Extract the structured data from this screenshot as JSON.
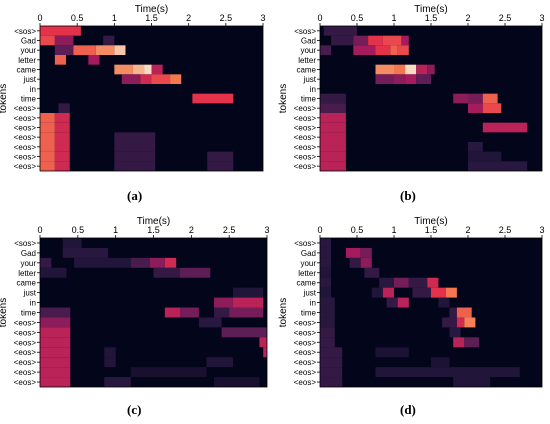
{
  "chart_data": [
    {
      "id": "a",
      "type": "heatmap",
      "xlabel": "Time(s)",
      "ylabel": "tokens",
      "xlim": [
        0,
        3
      ],
      "xticks": [
        "0",
        "0.5",
        "1",
        "1.5",
        "2",
        "2.5",
        "3"
      ],
      "yticklabels": [
        "<sos>",
        "Gad",
        "your",
        "letter",
        "came",
        "just",
        "in",
        "time",
        "<eos>",
        "<eos>",
        "<eos>",
        "<eos>",
        "<eos>",
        "<eos>",
        "<eos>"
      ],
      "caption": "(a)",
      "cells": [
        {
          "row": 0,
          "x0": 0.0,
          "x1": 0.55,
          "v": 0.55
        },
        {
          "row": 1,
          "x0": 0.0,
          "x1": 0.2,
          "v": 0.6
        },
        {
          "row": 1,
          "x0": 0.2,
          "x1": 0.45,
          "v": 0.35
        },
        {
          "row": 1,
          "x0": 0.85,
          "x1": 1.0,
          "v": 0.15
        },
        {
          "row": 2,
          "x0": 0.2,
          "x1": 0.45,
          "v": 0.25
        },
        {
          "row": 2,
          "x0": 0.45,
          "x1": 0.75,
          "v": 0.65
        },
        {
          "row": 2,
          "x0": 0.75,
          "x1": 1.0,
          "v": 0.75
        },
        {
          "row": 2,
          "x0": 1.0,
          "x1": 1.15,
          "v": 0.9
        },
        {
          "row": 3,
          "x0": 0.2,
          "x1": 0.35,
          "v": 0.65
        },
        {
          "row": 3,
          "x0": 0.65,
          "x1": 0.8,
          "v": 0.4
        },
        {
          "row": 4,
          "x0": 1.0,
          "x1": 1.25,
          "v": 0.75
        },
        {
          "row": 4,
          "x0": 1.25,
          "x1": 1.4,
          "v": 0.85
        },
        {
          "row": 4,
          "x0": 1.4,
          "x1": 1.5,
          "v": 0.95
        },
        {
          "row": 4,
          "x0": 1.5,
          "x1": 1.65,
          "v": 0.45
        },
        {
          "row": 5,
          "x0": 1.1,
          "x1": 1.35,
          "v": 0.35
        },
        {
          "row": 5,
          "x0": 1.35,
          "x1": 1.5,
          "v": 0.5
        },
        {
          "row": 5,
          "x0": 1.5,
          "x1": 1.75,
          "v": 0.6
        },
        {
          "row": 5,
          "x0": 1.75,
          "x1": 1.9,
          "v": 0.7
        },
        {
          "row": 7,
          "x0": 2.05,
          "x1": 2.6,
          "v": 0.55
        },
        {
          "row": 8,
          "x0": 0.25,
          "x1": 0.4,
          "v": 0.15
        },
        {
          "row": 9,
          "x0": 0.0,
          "x1": 0.2,
          "v": 0.65
        },
        {
          "row": 9,
          "x0": 0.2,
          "x1": 0.4,
          "v": 0.5
        },
        {
          "row": 10,
          "x0": 0.0,
          "x1": 0.2,
          "v": 0.65
        },
        {
          "row": 10,
          "x0": 0.2,
          "x1": 0.4,
          "v": 0.5
        },
        {
          "row": 11,
          "x0": 0.0,
          "x1": 0.2,
          "v": 0.65
        },
        {
          "row": 11,
          "x0": 0.2,
          "x1": 0.4,
          "v": 0.5
        },
        {
          "row": 11,
          "x0": 1.0,
          "x1": 1.55,
          "v": 0.15
        },
        {
          "row": 12,
          "x0": 0.0,
          "x1": 0.2,
          "v": 0.65
        },
        {
          "row": 12,
          "x0": 0.2,
          "x1": 0.4,
          "v": 0.5
        },
        {
          "row": 12,
          "x0": 1.0,
          "x1": 1.55,
          "v": 0.15
        },
        {
          "row": 13,
          "x0": 0.0,
          "x1": 0.2,
          "v": 0.65
        },
        {
          "row": 13,
          "x0": 0.2,
          "x1": 0.4,
          "v": 0.5
        },
        {
          "row": 13,
          "x0": 1.0,
          "x1": 1.55,
          "v": 0.15
        },
        {
          "row": 13,
          "x0": 2.25,
          "x1": 2.6,
          "v": 0.15
        },
        {
          "row": 14,
          "x0": 0.0,
          "x1": 0.2,
          "v": 0.65
        },
        {
          "row": 14,
          "x0": 0.2,
          "x1": 0.4,
          "v": 0.5
        },
        {
          "row": 14,
          "x0": 1.0,
          "x1": 1.55,
          "v": 0.15
        },
        {
          "row": 14,
          "x0": 2.25,
          "x1": 2.6,
          "v": 0.15
        }
      ]
    },
    {
      "id": "b",
      "type": "heatmap",
      "xlabel": "Time(s)",
      "ylabel": "tokens",
      "xlim": [
        0,
        3
      ],
      "xticks": [
        "0",
        "0.5",
        "1",
        "1.5",
        "2",
        "2.5",
        "3"
      ],
      "yticklabels": [
        "<sos>",
        "Gad",
        "your",
        "letter",
        "came",
        "just",
        "in",
        "time",
        "<eos>",
        "<eos>",
        "<eos>",
        "<eos>",
        "<eos>",
        "<eos>",
        "<eos>"
      ],
      "caption": "(b)",
      "cells": [
        {
          "row": 0,
          "x0": 0.05,
          "x1": 0.5,
          "v": 0.15
        },
        {
          "row": 1,
          "x0": 0.15,
          "x1": 0.45,
          "v": 0.15
        },
        {
          "row": 1,
          "x0": 0.45,
          "x1": 0.65,
          "v": 0.3
        },
        {
          "row": 1,
          "x0": 0.65,
          "x1": 0.85,
          "v": 0.55
        },
        {
          "row": 1,
          "x0": 0.85,
          "x1": 1.1,
          "v": 0.6
        },
        {
          "row": 1,
          "x0": 1.1,
          "x1": 1.2,
          "v": 0.4
        },
        {
          "row": 2,
          "x0": 0.0,
          "x1": 0.15,
          "v": 0.2
        },
        {
          "row": 2,
          "x0": 0.45,
          "x1": 0.75,
          "v": 0.4
        },
        {
          "row": 2,
          "x0": 0.75,
          "x1": 0.95,
          "v": 0.55
        },
        {
          "row": 2,
          "x0": 0.95,
          "x1": 1.05,
          "v": 0.65
        },
        {
          "row": 2,
          "x0": 1.05,
          "x1": 1.2,
          "v": 0.6
        },
        {
          "row": 4,
          "x0": 0.75,
          "x1": 1.0,
          "v": 0.75
        },
        {
          "row": 4,
          "x0": 1.0,
          "x1": 1.15,
          "v": 0.7
        },
        {
          "row": 4,
          "x0": 1.15,
          "x1": 1.3,
          "v": 0.95
        },
        {
          "row": 4,
          "x0": 1.3,
          "x1": 1.45,
          "v": 0.45
        },
        {
          "row": 4,
          "x0": 1.45,
          "x1": 1.55,
          "v": 0.35
        },
        {
          "row": 5,
          "x0": 0.75,
          "x1": 1.0,
          "v": 0.3
        },
        {
          "row": 5,
          "x0": 1.0,
          "x1": 1.15,
          "v": 0.35
        },
        {
          "row": 5,
          "x0": 1.15,
          "x1": 1.3,
          "v": 0.4
        },
        {
          "row": 5,
          "x0": 1.3,
          "x1": 1.5,
          "v": 0.25
        },
        {
          "row": 7,
          "x0": 0.0,
          "x1": 0.35,
          "v": 0.15
        },
        {
          "row": 7,
          "x0": 1.8,
          "x1": 2.0,
          "v": 0.35
        },
        {
          "row": 7,
          "x0": 2.0,
          "x1": 2.2,
          "v": 0.3
        },
        {
          "row": 7,
          "x0": 2.2,
          "x1": 2.4,
          "v": 0.65
        },
        {
          "row": 8,
          "x0": 0.0,
          "x1": 0.35,
          "v": 0.2
        },
        {
          "row": 8,
          "x0": 2.0,
          "x1": 2.2,
          "v": 0.4
        },
        {
          "row": 8,
          "x0": 2.2,
          "x1": 2.45,
          "v": 0.6
        },
        {
          "row": 9,
          "x0": 0.0,
          "x1": 0.35,
          "v": 0.45
        },
        {
          "row": 10,
          "x0": 0.0,
          "x1": 0.35,
          "v": 0.45
        },
        {
          "row": 10,
          "x0": 2.2,
          "x1": 2.8,
          "v": 0.45
        },
        {
          "row": 11,
          "x0": 0.0,
          "x1": 0.35,
          "v": 0.45
        },
        {
          "row": 12,
          "x0": 0.0,
          "x1": 0.35,
          "v": 0.45
        },
        {
          "row": 12,
          "x0": 2.0,
          "x1": 2.2,
          "v": 0.12
        },
        {
          "row": 13,
          "x0": 0.0,
          "x1": 0.35,
          "v": 0.45
        },
        {
          "row": 13,
          "x0": 2.0,
          "x1": 2.45,
          "v": 0.1
        },
        {
          "row": 14,
          "x0": 0.0,
          "x1": 0.35,
          "v": 0.45
        },
        {
          "row": 14,
          "x0": 2.0,
          "x1": 2.8,
          "v": 0.12
        }
      ]
    },
    {
      "id": "c",
      "type": "heatmap",
      "xlabel": "Time(s)",
      "ylabel": "tokens",
      "xlim": [
        0,
        3
      ],
      "xticks": [
        "0",
        "0.5",
        "1",
        "1.5",
        "2",
        "2.5",
        "3"
      ],
      "yticklabels": [
        "<sos>",
        "Gad",
        "your",
        "letter",
        "came",
        "just",
        "in",
        "time",
        "<eos>",
        "<eos>",
        "<eos>",
        "<eos>",
        "<eos>",
        "<eos>",
        "<eos>"
      ],
      "caption": "(c)",
      "cells": [
        {
          "row": 0,
          "x0": 0.3,
          "x1": 0.55,
          "v": 0.1
        },
        {
          "row": 1,
          "x0": 0.3,
          "x1": 0.9,
          "v": 0.12
        },
        {
          "row": 2,
          "x0": 0.0,
          "x1": 0.15,
          "v": 0.15
        },
        {
          "row": 2,
          "x0": 0.45,
          "x1": 1.2,
          "v": 0.1
        },
        {
          "row": 2,
          "x0": 1.2,
          "x1": 1.45,
          "v": 0.2
        },
        {
          "row": 2,
          "x0": 1.45,
          "x1": 1.65,
          "v": 0.35
        },
        {
          "row": 2,
          "x0": 1.65,
          "x1": 1.8,
          "v": 0.5
        },
        {
          "row": 3,
          "x0": 0.0,
          "x1": 0.35,
          "v": 0.1
        },
        {
          "row": 3,
          "x0": 1.5,
          "x1": 1.85,
          "v": 0.15
        },
        {
          "row": 3,
          "x0": 1.85,
          "x1": 2.25,
          "v": 0.25
        },
        {
          "row": 5,
          "x0": 2.55,
          "x1": 2.95,
          "v": 0.1
        },
        {
          "row": 6,
          "x0": 2.3,
          "x1": 2.55,
          "v": 0.35
        },
        {
          "row": 6,
          "x0": 2.55,
          "x1": 2.95,
          "v": 0.45
        },
        {
          "row": 7,
          "x0": 0.0,
          "x1": 0.4,
          "v": 0.2
        },
        {
          "row": 7,
          "x0": 1.65,
          "x1": 1.85,
          "v": 0.45
        },
        {
          "row": 7,
          "x0": 1.85,
          "x1": 2.1,
          "v": 0.3
        },
        {
          "row": 7,
          "x0": 2.3,
          "x1": 2.5,
          "v": 0.15
        },
        {
          "row": 7,
          "x0": 2.5,
          "x1": 2.95,
          "v": 0.3
        },
        {
          "row": 8,
          "x0": 0.0,
          "x1": 0.4,
          "v": 0.35
        },
        {
          "row": 8,
          "x0": 2.1,
          "x1": 2.4,
          "v": 0.12
        },
        {
          "row": 9,
          "x0": 0.0,
          "x1": 0.4,
          "v": 0.45
        },
        {
          "row": 9,
          "x0": 2.4,
          "x1": 3.0,
          "v": 0.25
        },
        {
          "row": 10,
          "x0": 0.0,
          "x1": 0.4,
          "v": 0.45
        },
        {
          "row": 10,
          "x0": 2.9,
          "x1": 3.0,
          "v": 0.45
        },
        {
          "row": 11,
          "x0": 0.0,
          "x1": 0.4,
          "v": 0.45
        },
        {
          "row": 11,
          "x0": 0.85,
          "x1": 1.0,
          "v": 0.1
        },
        {
          "row": 11,
          "x0": 2.95,
          "x1": 3.0,
          "v": 0.45
        },
        {
          "row": 12,
          "x0": 0.0,
          "x1": 0.4,
          "v": 0.45
        },
        {
          "row": 12,
          "x0": 0.85,
          "x1": 1.0,
          "v": 0.1
        },
        {
          "row": 12,
          "x0": 2.2,
          "x1": 2.55,
          "v": 0.1
        },
        {
          "row": 13,
          "x0": 0.0,
          "x1": 0.4,
          "v": 0.45
        },
        {
          "row": 13,
          "x0": 1.2,
          "x1": 2.2,
          "v": 0.07
        },
        {
          "row": 14,
          "x0": 0.0,
          "x1": 0.4,
          "v": 0.45
        },
        {
          "row": 14,
          "x0": 0.85,
          "x1": 1.2,
          "v": 0.12
        },
        {
          "row": 14,
          "x0": 2.3,
          "x1": 2.9,
          "v": 0.07
        }
      ]
    },
    {
      "id": "d",
      "type": "heatmap",
      "xlabel": "Time(s)",
      "ylabel": "tokens",
      "xlim": [
        0,
        3
      ],
      "xticks": [
        "0",
        "0.5",
        "1",
        "1.5",
        "2",
        "2.5",
        "3"
      ],
      "yticklabels": [
        "<sos>",
        "Gad",
        "your",
        "letter",
        "came",
        "just",
        "in",
        "time",
        "<eos>",
        "<eos>",
        "<eos>",
        "<eos>",
        "<eos>",
        "<eos>",
        "<eos>"
      ],
      "caption": "(d)",
      "cells": [
        {
          "row": 0,
          "x0": 0.0,
          "x1": 0.15,
          "v": 0.12
        },
        {
          "row": 1,
          "x0": 0.0,
          "x1": 0.15,
          "v": 0.12
        },
        {
          "row": 1,
          "x0": 0.35,
          "x1": 0.55,
          "v": 0.4
        },
        {
          "row": 1,
          "x0": 0.55,
          "x1": 0.7,
          "v": 0.3
        },
        {
          "row": 2,
          "x0": 0.0,
          "x1": 0.15,
          "v": 0.12
        },
        {
          "row": 2,
          "x0": 0.4,
          "x1": 0.55,
          "v": 0.15
        },
        {
          "row": 2,
          "x0": 0.55,
          "x1": 0.7,
          "v": 0.35
        },
        {
          "row": 3,
          "x0": 0.0,
          "x1": 0.15,
          "v": 0.1
        },
        {
          "row": 3,
          "x0": 0.6,
          "x1": 0.8,
          "v": 0.15
        },
        {
          "row": 4,
          "x0": 0.0,
          "x1": 0.15,
          "v": 0.12
        },
        {
          "row": 4,
          "x0": 0.8,
          "x1": 1.0,
          "v": 0.12
        },
        {
          "row": 4,
          "x0": 1.0,
          "x1": 1.2,
          "v": 0.3
        },
        {
          "row": 4,
          "x0": 1.2,
          "x1": 1.45,
          "v": 0.15
        },
        {
          "row": 4,
          "x0": 1.45,
          "x1": 1.6,
          "v": 0.5
        },
        {
          "row": 5,
          "x0": 0.0,
          "x1": 0.15,
          "v": 0.1
        },
        {
          "row": 5,
          "x0": 0.7,
          "x1": 0.85,
          "v": 0.1
        },
        {
          "row": 5,
          "x0": 0.85,
          "x1": 1.0,
          "v": 0.45
        },
        {
          "row": 5,
          "x0": 1.25,
          "x1": 1.5,
          "v": 0.15
        },
        {
          "row": 5,
          "x0": 1.5,
          "x1": 1.7,
          "v": 0.55
        },
        {
          "row": 5,
          "x0": 1.7,
          "x1": 1.85,
          "v": 0.7
        },
        {
          "row": 6,
          "x0": 0.0,
          "x1": 0.2,
          "v": 0.12
        },
        {
          "row": 6,
          "x0": 0.9,
          "x1": 1.05,
          "v": 0.15
        },
        {
          "row": 6,
          "x0": 1.05,
          "x1": 1.2,
          "v": 0.45
        },
        {
          "row": 6,
          "x0": 1.6,
          "x1": 1.75,
          "v": 0.1
        },
        {
          "row": 7,
          "x0": 0.0,
          "x1": 0.2,
          "v": 0.12
        },
        {
          "row": 7,
          "x0": 1.75,
          "x1": 1.85,
          "v": 0.15
        },
        {
          "row": 7,
          "x0": 1.85,
          "x1": 2.05,
          "v": 0.65
        },
        {
          "row": 8,
          "x0": 0.0,
          "x1": 0.2,
          "v": 0.12
        },
        {
          "row": 8,
          "x0": 1.65,
          "x1": 1.85,
          "v": 0.15
        },
        {
          "row": 8,
          "x0": 1.85,
          "x1": 1.95,
          "v": 0.5
        },
        {
          "row": 8,
          "x0": 1.95,
          "x1": 2.1,
          "v": 0.72
        },
        {
          "row": 9,
          "x0": 0.0,
          "x1": 0.2,
          "v": 0.15
        },
        {
          "row": 9,
          "x0": 1.75,
          "x1": 1.9,
          "v": 0.12
        },
        {
          "row": 10,
          "x0": 0.0,
          "x1": 0.2,
          "v": 0.15
        },
        {
          "row": 10,
          "x0": 1.8,
          "x1": 1.95,
          "v": 0.45
        },
        {
          "row": 10,
          "x0": 1.95,
          "x1": 2.15,
          "v": 0.25
        },
        {
          "row": 11,
          "x0": 0.0,
          "x1": 0.3,
          "v": 0.15
        },
        {
          "row": 11,
          "x0": 0.75,
          "x1": 1.2,
          "v": 0.08
        },
        {
          "row": 12,
          "x0": 0.0,
          "x1": 0.3,
          "v": 0.15
        },
        {
          "row": 12,
          "x0": 1.5,
          "x1": 1.75,
          "v": 0.08
        },
        {
          "row": 13,
          "x0": 0.0,
          "x1": 0.3,
          "v": 0.15
        },
        {
          "row": 13,
          "x0": 0.75,
          "x1": 2.7,
          "v": 0.1
        },
        {
          "row": 14,
          "x0": 0.0,
          "x1": 0.3,
          "v": 0.15
        },
        {
          "row": 14,
          "x0": 1.8,
          "x1": 2.3,
          "v": 0.1
        }
      ]
    }
  ]
}
